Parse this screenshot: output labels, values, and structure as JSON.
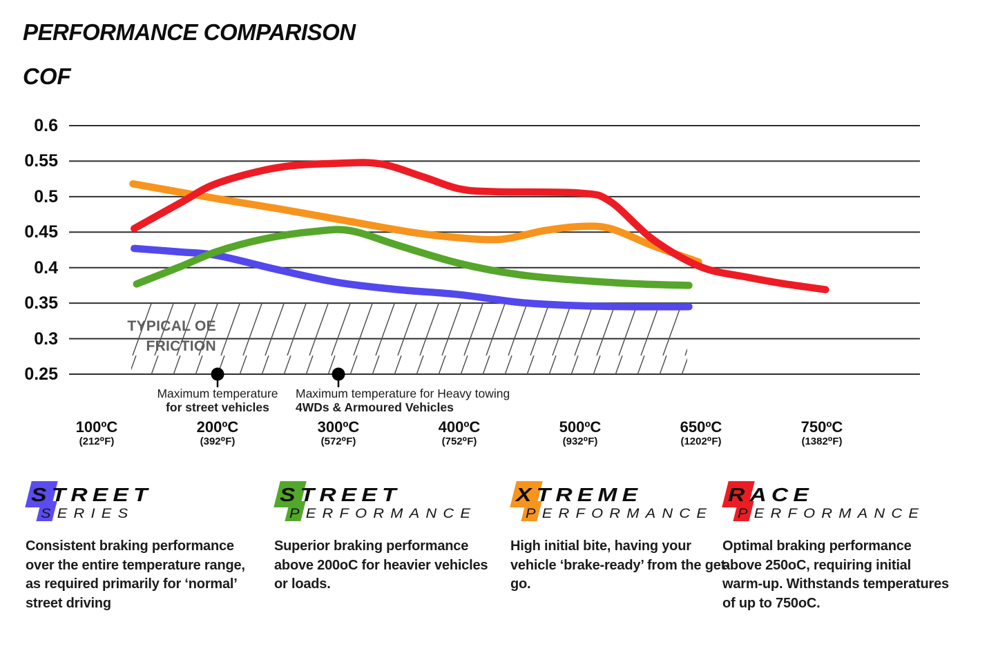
{
  "title": "PERFORMANCE COMPARISON",
  "y_axis_title": "COF",
  "chart_data": {
    "type": "line",
    "title": "PERFORMANCE COMPARISON",
    "ylabel": "COF",
    "ylim": [
      0.25,
      0.6
    ],
    "grid": true,
    "y_ticks": [
      "0.6",
      "0.55",
      "0.5",
      "0.45",
      "0.4",
      "0.35",
      "0.3",
      "0.25"
    ],
    "x_tick_temps_c": [
      100,
      200,
      300,
      400,
      500,
      650,
      750
    ],
    "x_ticks": [
      {
        "celsius": "100ºC",
        "fahrenheit": "(212⁰F)"
      },
      {
        "celsius": "200ºC",
        "fahrenheit": "(392⁰F)"
      },
      {
        "celsius": "300ºC",
        "fahrenheit": "(572⁰F)"
      },
      {
        "celsius": "400ºC",
        "fahrenheit": "(752⁰F)"
      },
      {
        "celsius": "500ºC",
        "fahrenheit": "(932⁰F)"
      },
      {
        "celsius": "650ºC",
        "fahrenheit": "(1202⁰F)"
      },
      {
        "celsius": "750ºC",
        "fahrenheit": "(1382⁰F)"
      }
    ],
    "x_unit_note": "series x is tick position: 0=100ºC, 1=200ºC, 2=300ºC, 3=400ºC, 4=500ºC, 5=650ºC, 6=750ºC (equal spacing)",
    "series": [
      {
        "name": "Street Series",
        "color": "#5348ec",
        "points": [
          [
            0.31,
            0.427
          ],
          [
            0.7,
            0.422
          ],
          [
            1.0,
            0.417
          ],
          [
            1.5,
            0.397
          ],
          [
            2.0,
            0.379
          ],
          [
            2.5,
            0.369
          ],
          [
            3.0,
            0.362
          ],
          [
            3.5,
            0.351
          ],
          [
            3.9,
            0.347
          ],
          [
            4.4,
            0.345
          ],
          [
            4.9,
            0.345
          ]
        ]
      },
      {
        "name": "Street Performance",
        "color": "#55a62a",
        "points": [
          [
            0.33,
            0.377
          ],
          [
            0.7,
            0.402
          ],
          [
            1.0,
            0.423
          ],
          [
            1.4,
            0.441
          ],
          [
            1.8,
            0.451
          ],
          [
            2.1,
            0.452
          ],
          [
            2.5,
            0.431
          ],
          [
            3.0,
            0.406
          ],
          [
            3.5,
            0.39
          ],
          [
            4.0,
            0.382
          ],
          [
            4.5,
            0.377
          ],
          [
            4.9,
            0.375
          ]
        ]
      },
      {
        "name": "Xtreme Performance",
        "color": "#f7941e",
        "points": [
          [
            0.3,
            0.518
          ],
          [
            1.0,
            0.497
          ],
          [
            1.5,
            0.483
          ],
          [
            2.0,
            0.468
          ],
          [
            2.6,
            0.45
          ],
          [
            3.0,
            0.442
          ],
          [
            3.35,
            0.44
          ],
          [
            3.7,
            0.452
          ],
          [
            4.0,
            0.458
          ],
          [
            4.25,
            0.455
          ],
          [
            4.6,
            0.431
          ],
          [
            4.98,
            0.408
          ]
        ]
      },
      {
        "name": "Race Performance",
        "color": "#ed1c24",
        "points": [
          [
            0.31,
            0.455
          ],
          [
            0.7,
            0.492
          ],
          [
            1.0,
            0.519
          ],
          [
            1.5,
            0.541
          ],
          [
            2.0,
            0.547
          ],
          [
            2.35,
            0.546
          ],
          [
            2.7,
            0.528
          ],
          [
            3.0,
            0.511
          ],
          [
            3.3,
            0.507
          ],
          [
            4.0,
            0.505
          ],
          [
            4.25,
            0.493
          ],
          [
            4.6,
            0.44
          ],
          [
            5.0,
            0.401
          ],
          [
            5.4,
            0.386
          ],
          [
            5.7,
            0.377
          ],
          [
            6.03,
            0.369
          ]
        ]
      }
    ],
    "oe_zone": {
      "label_line1": "TYPICAL OE",
      "label_line2": "FRICTION",
      "value_from": 0.25,
      "value_to": 0.35
    },
    "annotations": [
      {
        "tick_index": 1,
        "line1": "Maximum temperature",
        "line2": "for street vehicles"
      },
      {
        "tick_index": 2,
        "line1": "Maximum temperature for Heavy towing",
        "line2": "4WDs & Armoured Vehicles"
      }
    ]
  },
  "legend": [
    {
      "word1": "STREET",
      "word2": "SERIES",
      "badge_color": "#5b4cf0",
      "description": "Consistent braking performance over the entire temperature range, as required primarily for ‘normal’ street driving"
    },
    {
      "word1": "STREET",
      "word2": "PERFORMANCE",
      "badge_color": "#53a82b",
      "description": "Superior braking performance above 200oC for heavier vehicles or loads."
    },
    {
      "word1": "XTREME",
      "word2": "PERFORMANCE",
      "badge_color": "#f7941e",
      "description": "High initial bite, having your vehicle ‘brake-ready’ from the get-go."
    },
    {
      "word1": "RACE",
      "word2": "PERFORMANCE",
      "badge_color": "#ed1c24",
      "description": "Optimal braking performance above 250oC, requiring initial warm-up. Withstands temperatures of up to 750oC."
    }
  ]
}
